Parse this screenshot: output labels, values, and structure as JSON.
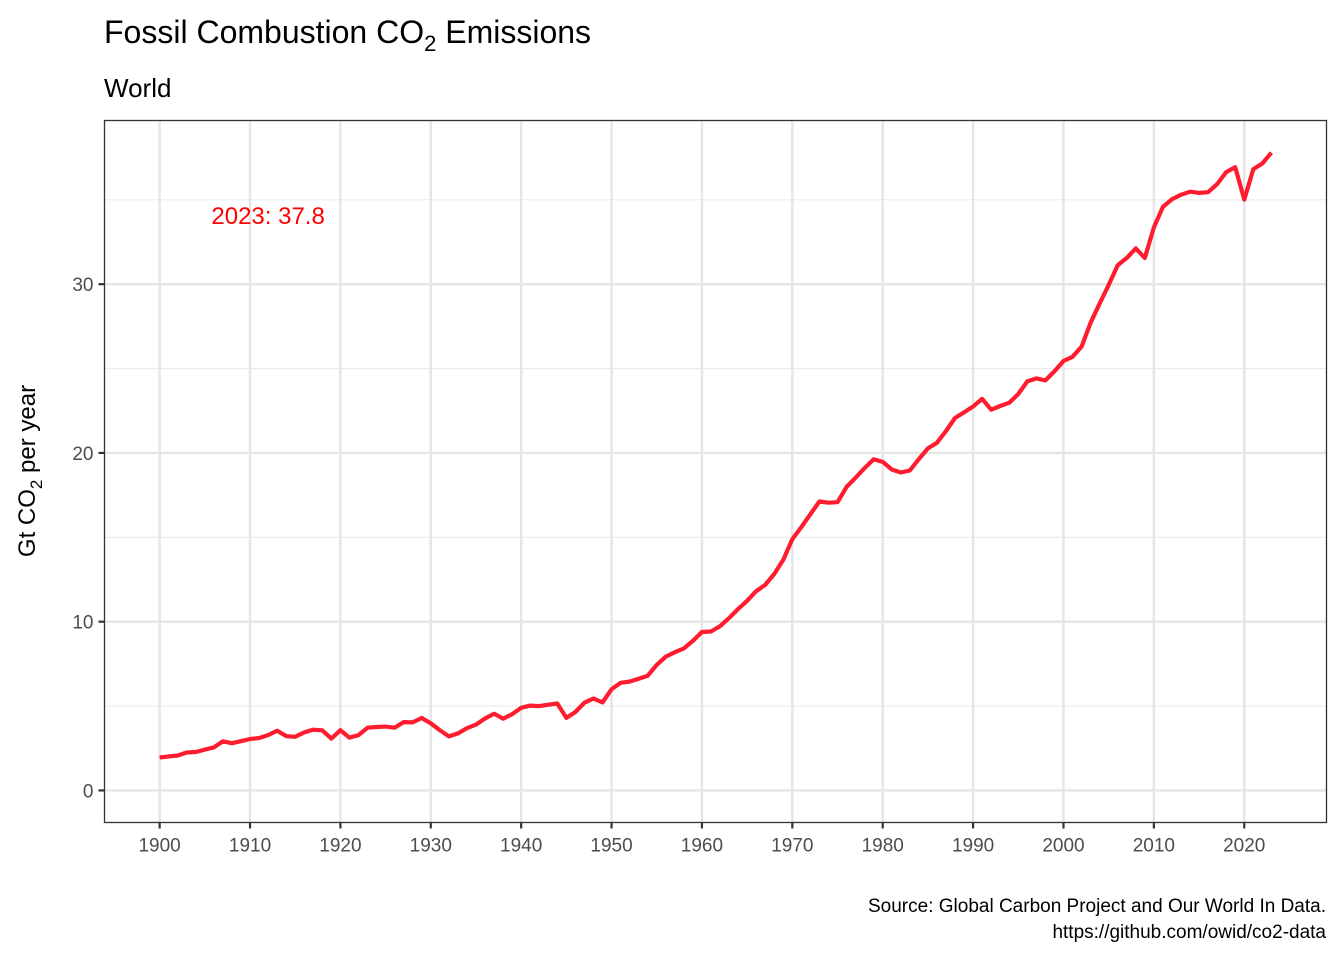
{
  "chart_data": {
    "type": "line",
    "title": "Fossil Combustion CO",
    "title_subscript": "2",
    "title_suffix": " Emissions",
    "subtitle": "World",
    "xlabel": "",
    "ylabel_prefix": "Gt CO",
    "ylabel_subscript": "2",
    "ylabel_suffix": " per year",
    "xlim": [
      1893.9,
      2029.1
    ],
    "ylim": [
      -1.9,
      39.7
    ],
    "xticks": [
      1900,
      1910,
      1920,
      1930,
      1940,
      1950,
      1960,
      1970,
      1980,
      1990,
      2000,
      2010,
      2020
    ],
    "yticks": [
      0,
      10,
      20,
      30
    ],
    "ygrid_minor": [
      5,
      15,
      25,
      35
    ],
    "grid": true,
    "annotation": {
      "text": "2023: 37.8",
      "x": 1912,
      "y": 34.1,
      "color": "#FF0000"
    },
    "caption_line1": "Source: Global Carbon Project and Our World In Data.",
    "caption_line2": "https://github.com/owid/co2-data",
    "line_color": "#FF1C2F",
    "series": [
      {
        "name": "World",
        "x": [
          1900,
          1901,
          1902,
          1903,
          1904,
          1905,
          1906,
          1907,
          1908,
          1909,
          1910,
          1911,
          1912,
          1913,
          1914,
          1915,
          1916,
          1917,
          1918,
          1919,
          1920,
          1921,
          1922,
          1923,
          1924,
          1925,
          1926,
          1927,
          1928,
          1929,
          1930,
          1931,
          1932,
          1933,
          1934,
          1935,
          1936,
          1937,
          1938,
          1939,
          1940,
          1941,
          1942,
          1943,
          1944,
          1945,
          1946,
          1947,
          1948,
          1949,
          1950,
          1951,
          1952,
          1953,
          1954,
          1955,
          1956,
          1957,
          1958,
          1959,
          1960,
          1961,
          1962,
          1963,
          1964,
          1965,
          1966,
          1967,
          1968,
          1969,
          1970,
          1971,
          1972,
          1973,
          1974,
          1975,
          1976,
          1977,
          1978,
          1979,
          1980,
          1981,
          1982,
          1983,
          1984,
          1985,
          1986,
          1987,
          1988,
          1989,
          1990,
          1991,
          1992,
          1993,
          1994,
          1995,
          1996,
          1997,
          1998,
          1999,
          2000,
          2001,
          2002,
          2003,
          2004,
          2005,
          2006,
          2007,
          2008,
          2009,
          2010,
          2011,
          2012,
          2013,
          2014,
          2015,
          2016,
          2017,
          2018,
          2019,
          2020,
          2021,
          2022,
          2023
        ],
        "values": [
          1.95,
          2.02,
          2.07,
          2.25,
          2.28,
          2.42,
          2.55,
          2.91,
          2.8,
          2.92,
          3.05,
          3.11,
          3.28,
          3.54,
          3.22,
          3.18,
          3.44,
          3.6,
          3.56,
          3.07,
          3.57,
          3.13,
          3.28,
          3.72,
          3.76,
          3.78,
          3.72,
          4.05,
          4.04,
          4.29,
          3.98,
          3.57,
          3.2,
          3.38,
          3.69,
          3.9,
          4.26,
          4.55,
          4.25,
          4.52,
          4.9,
          5.03,
          5.0,
          5.08,
          5.15,
          4.3,
          4.65,
          5.2,
          5.45,
          5.22,
          6.0,
          6.38,
          6.45,
          6.62,
          6.8,
          7.44,
          7.93,
          8.19,
          8.42,
          8.86,
          9.39,
          9.42,
          9.73,
          10.22,
          10.75,
          11.24,
          11.81,
          12.18,
          12.83,
          13.67,
          14.89,
          15.61,
          16.37,
          17.12,
          17.05,
          17.08,
          17.99,
          18.53,
          19.1,
          19.63,
          19.47,
          19.02,
          18.84,
          18.96,
          19.64,
          20.27,
          20.6,
          21.3,
          22.07,
          22.41,
          22.75,
          23.21,
          22.56,
          22.78,
          22.98,
          23.49,
          24.24,
          24.42,
          24.3,
          24.83,
          25.45,
          25.7,
          26.3,
          27.72,
          28.85,
          29.96,
          31.12,
          31.56,
          32.12,
          31.55,
          33.37,
          34.58,
          35.03,
          35.3,
          35.48,
          35.41,
          35.45,
          35.93,
          36.64,
          36.93,
          35.01,
          36.82,
          37.15,
          37.79
        ]
      }
    ]
  }
}
